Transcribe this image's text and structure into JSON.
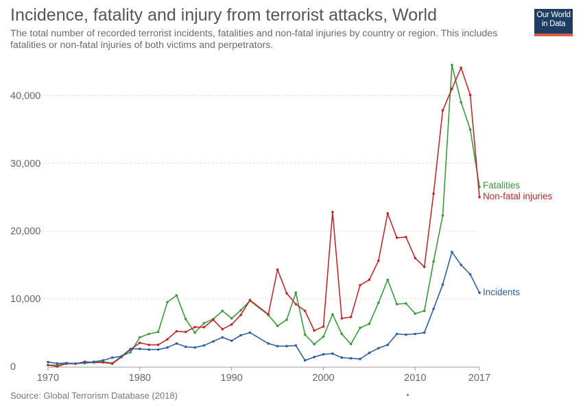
{
  "header": {
    "title": "Incidence, fatality and injury from terrorist attacks, World",
    "subtitle": "The total number of recorded terrorist incidents, fatalities and non-fatal injuries by country or region. This includes fatalities or non-fatal injuries of both victims and perpetrators."
  },
  "logo": {
    "line1": "Our World",
    "line2": "in Data"
  },
  "footer": {
    "source": "Source: Global Terrorism Database (2018)"
  },
  "chart_data": {
    "type": "line",
    "title": "Incidence, fatality and injury from terrorist attacks, World",
    "xlim": [
      1970,
      2017
    ],
    "ylim": [
      0,
      45000
    ],
    "x_ticks": [
      1970,
      1980,
      1990,
      2000,
      2010,
      2017
    ],
    "x_tick_labels": [
      "1970",
      "1980",
      "1990",
      "2000",
      "2010",
      "2017"
    ],
    "y_ticks": [
      0,
      10000,
      20000,
      30000,
      40000
    ],
    "y_tick_labels": [
      "0",
      "10,000",
      "20,000",
      "30,000",
      "40,000"
    ],
    "grid": "horizontal-dashed",
    "legend": "inline-right",
    "x": [
      1970,
      1971,
      1972,
      1973,
      1974,
      1975,
      1976,
      1977,
      1978,
      1979,
      1980,
      1981,
      1982,
      1983,
      1984,
      1985,
      1986,
      1987,
      1988,
      1989,
      1990,
      1991,
      1992,
      1994,
      1995,
      1996,
      1997,
      1998,
      1999,
      2000,
      2001,
      2002,
      2003,
      2004,
      2005,
      2006,
      2007,
      2008,
      2009,
      2010,
      2011,
      2012,
      2013,
      2014,
      2015,
      2016,
      2017
    ],
    "series": [
      {
        "name": "Fatalities",
        "color": "#3a9a3a",
        "values": [
          200,
          200,
          500,
          400,
          500,
          600,
          700,
          500,
          1500,
          2100,
          4300,
          4800,
          5100,
          9500,
          10500,
          7000,
          5000,
          6400,
          7000,
          8200,
          7100,
          8300,
          9700,
          7600,
          6000,
          6900,
          10900,
          4700,
          3300,
          4400,
          7700,
          4800,
          3300,
          5700,
          6300,
          9400,
          12800,
          9200,
          9300,
          7800,
          8200,
          15500,
          22300,
          44500,
          39000,
          35000,
          26500
        ]
      },
      {
        "name": "Non-fatal injuries",
        "color": "#c0282d",
        "values": [
          200,
          0,
          400,
          400,
          700,
          600,
          600,
          400,
          1400,
          2500,
          3500,
          3200,
          3200,
          4000,
          5200,
          5100,
          5800,
          5800,
          6900,
          5500,
          6200,
          7600,
          9800,
          7700,
          14300,
          10800,
          9200,
          8200,
          5300,
          5900,
          22800,
          7100,
          7300,
          12000,
          12800,
          15600,
          22600,
          19000,
          19100,
          16000,
          14700,
          25500,
          37800,
          41000,
          44100,
          40100,
          25000
        ]
      },
      {
        "name": "Incidents",
        "color": "#2e5fa0",
        "values": [
          650,
          450,
          500,
          450,
          550,
          700,
          900,
          1300,
          1500,
          2600,
          2600,
          2500,
          2500,
          2800,
          3400,
          2900,
          2800,
          3100,
          3700,
          4300,
          3800,
          4600,
          5000,
          3400,
          3000,
          3000,
          3100,
          900,
          1400,
          1800,
          1900,
          1300,
          1200,
          1100,
          2000,
          2700,
          3200,
          4800,
          4700,
          4800,
          5000,
          8500,
          12100,
          16900,
          15000,
          13600,
          10900
        ]
      }
    ]
  }
}
